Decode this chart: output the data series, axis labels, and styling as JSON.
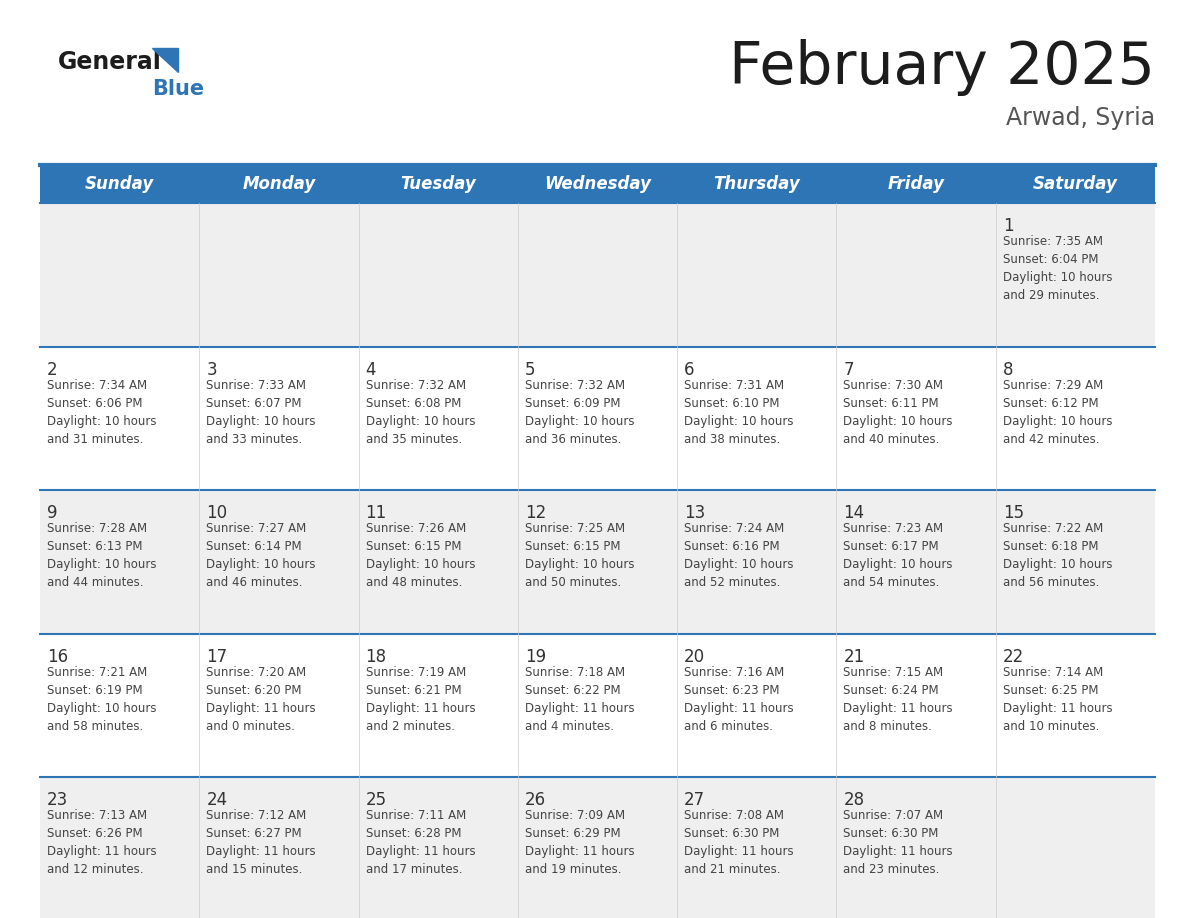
{
  "title": "February 2025",
  "subtitle": "Arwad, Syria",
  "days_of_week": [
    "Sunday",
    "Monday",
    "Tuesday",
    "Wednesday",
    "Thursday",
    "Friday",
    "Saturday"
  ],
  "header_bg": "#2E75B6",
  "header_text_color": "#FFFFFF",
  "cell_bg_light": "#EFEFEF",
  "cell_bg_white": "#FFFFFF",
  "separator_color": "#2E75B6",
  "text_color": "#333333",
  "day_number_color": "#333333",
  "calendar_data": [
    [
      null,
      null,
      null,
      null,
      null,
      null,
      {
        "day": 1,
        "sunrise": "7:35 AM",
        "sunset": "6:04 PM",
        "daylight_line1": "Daylight: 10 hours",
        "daylight_line2": "and 29 minutes."
      }
    ],
    [
      {
        "day": 2,
        "sunrise": "7:34 AM",
        "sunset": "6:06 PM",
        "daylight_line1": "Daylight: 10 hours",
        "daylight_line2": "and 31 minutes."
      },
      {
        "day": 3,
        "sunrise": "7:33 AM",
        "sunset": "6:07 PM",
        "daylight_line1": "Daylight: 10 hours",
        "daylight_line2": "and 33 minutes."
      },
      {
        "day": 4,
        "sunrise": "7:32 AM",
        "sunset": "6:08 PM",
        "daylight_line1": "Daylight: 10 hours",
        "daylight_line2": "and 35 minutes."
      },
      {
        "day": 5,
        "sunrise": "7:32 AM",
        "sunset": "6:09 PM",
        "daylight_line1": "Daylight: 10 hours",
        "daylight_line2": "and 36 minutes."
      },
      {
        "day": 6,
        "sunrise": "7:31 AM",
        "sunset": "6:10 PM",
        "daylight_line1": "Daylight: 10 hours",
        "daylight_line2": "and 38 minutes."
      },
      {
        "day": 7,
        "sunrise": "7:30 AM",
        "sunset": "6:11 PM",
        "daylight_line1": "Daylight: 10 hours",
        "daylight_line2": "and 40 minutes."
      },
      {
        "day": 8,
        "sunrise": "7:29 AM",
        "sunset": "6:12 PM",
        "daylight_line1": "Daylight: 10 hours",
        "daylight_line2": "and 42 minutes."
      }
    ],
    [
      {
        "day": 9,
        "sunrise": "7:28 AM",
        "sunset": "6:13 PM",
        "daylight_line1": "Daylight: 10 hours",
        "daylight_line2": "and 44 minutes."
      },
      {
        "day": 10,
        "sunrise": "7:27 AM",
        "sunset": "6:14 PM",
        "daylight_line1": "Daylight: 10 hours",
        "daylight_line2": "and 46 minutes."
      },
      {
        "day": 11,
        "sunrise": "7:26 AM",
        "sunset": "6:15 PM",
        "daylight_line1": "Daylight: 10 hours",
        "daylight_line2": "and 48 minutes."
      },
      {
        "day": 12,
        "sunrise": "7:25 AM",
        "sunset": "6:15 PM",
        "daylight_line1": "Daylight: 10 hours",
        "daylight_line2": "and 50 minutes."
      },
      {
        "day": 13,
        "sunrise": "7:24 AM",
        "sunset": "6:16 PM",
        "daylight_line1": "Daylight: 10 hours",
        "daylight_line2": "and 52 minutes."
      },
      {
        "day": 14,
        "sunrise": "7:23 AM",
        "sunset": "6:17 PM",
        "daylight_line1": "Daylight: 10 hours",
        "daylight_line2": "and 54 minutes."
      },
      {
        "day": 15,
        "sunrise": "7:22 AM",
        "sunset": "6:18 PM",
        "daylight_line1": "Daylight: 10 hours",
        "daylight_line2": "and 56 minutes."
      }
    ],
    [
      {
        "day": 16,
        "sunrise": "7:21 AM",
        "sunset": "6:19 PM",
        "daylight_line1": "Daylight: 10 hours",
        "daylight_line2": "and 58 minutes."
      },
      {
        "day": 17,
        "sunrise": "7:20 AM",
        "sunset": "6:20 PM",
        "daylight_line1": "Daylight: 11 hours",
        "daylight_line2": "and 0 minutes."
      },
      {
        "day": 18,
        "sunrise": "7:19 AM",
        "sunset": "6:21 PM",
        "daylight_line1": "Daylight: 11 hours",
        "daylight_line2": "and 2 minutes."
      },
      {
        "day": 19,
        "sunrise": "7:18 AM",
        "sunset": "6:22 PM",
        "daylight_line1": "Daylight: 11 hours",
        "daylight_line2": "and 4 minutes."
      },
      {
        "day": 20,
        "sunrise": "7:16 AM",
        "sunset": "6:23 PM",
        "daylight_line1": "Daylight: 11 hours",
        "daylight_line2": "and 6 minutes."
      },
      {
        "day": 21,
        "sunrise": "7:15 AM",
        "sunset": "6:24 PM",
        "daylight_line1": "Daylight: 11 hours",
        "daylight_line2": "and 8 minutes."
      },
      {
        "day": 22,
        "sunrise": "7:14 AM",
        "sunset": "6:25 PM",
        "daylight_line1": "Daylight: 11 hours",
        "daylight_line2": "and 10 minutes."
      }
    ],
    [
      {
        "day": 23,
        "sunrise": "7:13 AM",
        "sunset": "6:26 PM",
        "daylight_line1": "Daylight: 11 hours",
        "daylight_line2": "and 12 minutes."
      },
      {
        "day": 24,
        "sunrise": "7:12 AM",
        "sunset": "6:27 PM",
        "daylight_line1": "Daylight: 11 hours",
        "daylight_line2": "and 15 minutes."
      },
      {
        "day": 25,
        "sunrise": "7:11 AM",
        "sunset": "6:28 PM",
        "daylight_line1": "Daylight: 11 hours",
        "daylight_line2": "and 17 minutes."
      },
      {
        "day": 26,
        "sunrise": "7:09 AM",
        "sunset": "6:29 PM",
        "daylight_line1": "Daylight: 11 hours",
        "daylight_line2": "and 19 minutes."
      },
      {
        "day": 27,
        "sunrise": "7:08 AM",
        "sunset": "6:30 PM",
        "daylight_line1": "Daylight: 11 hours",
        "daylight_line2": "and 21 minutes."
      },
      {
        "day": 28,
        "sunrise": "7:07 AM",
        "sunset": "6:30 PM",
        "daylight_line1": "Daylight: 11 hours",
        "daylight_line2": "and 23 minutes."
      },
      null
    ]
  ]
}
